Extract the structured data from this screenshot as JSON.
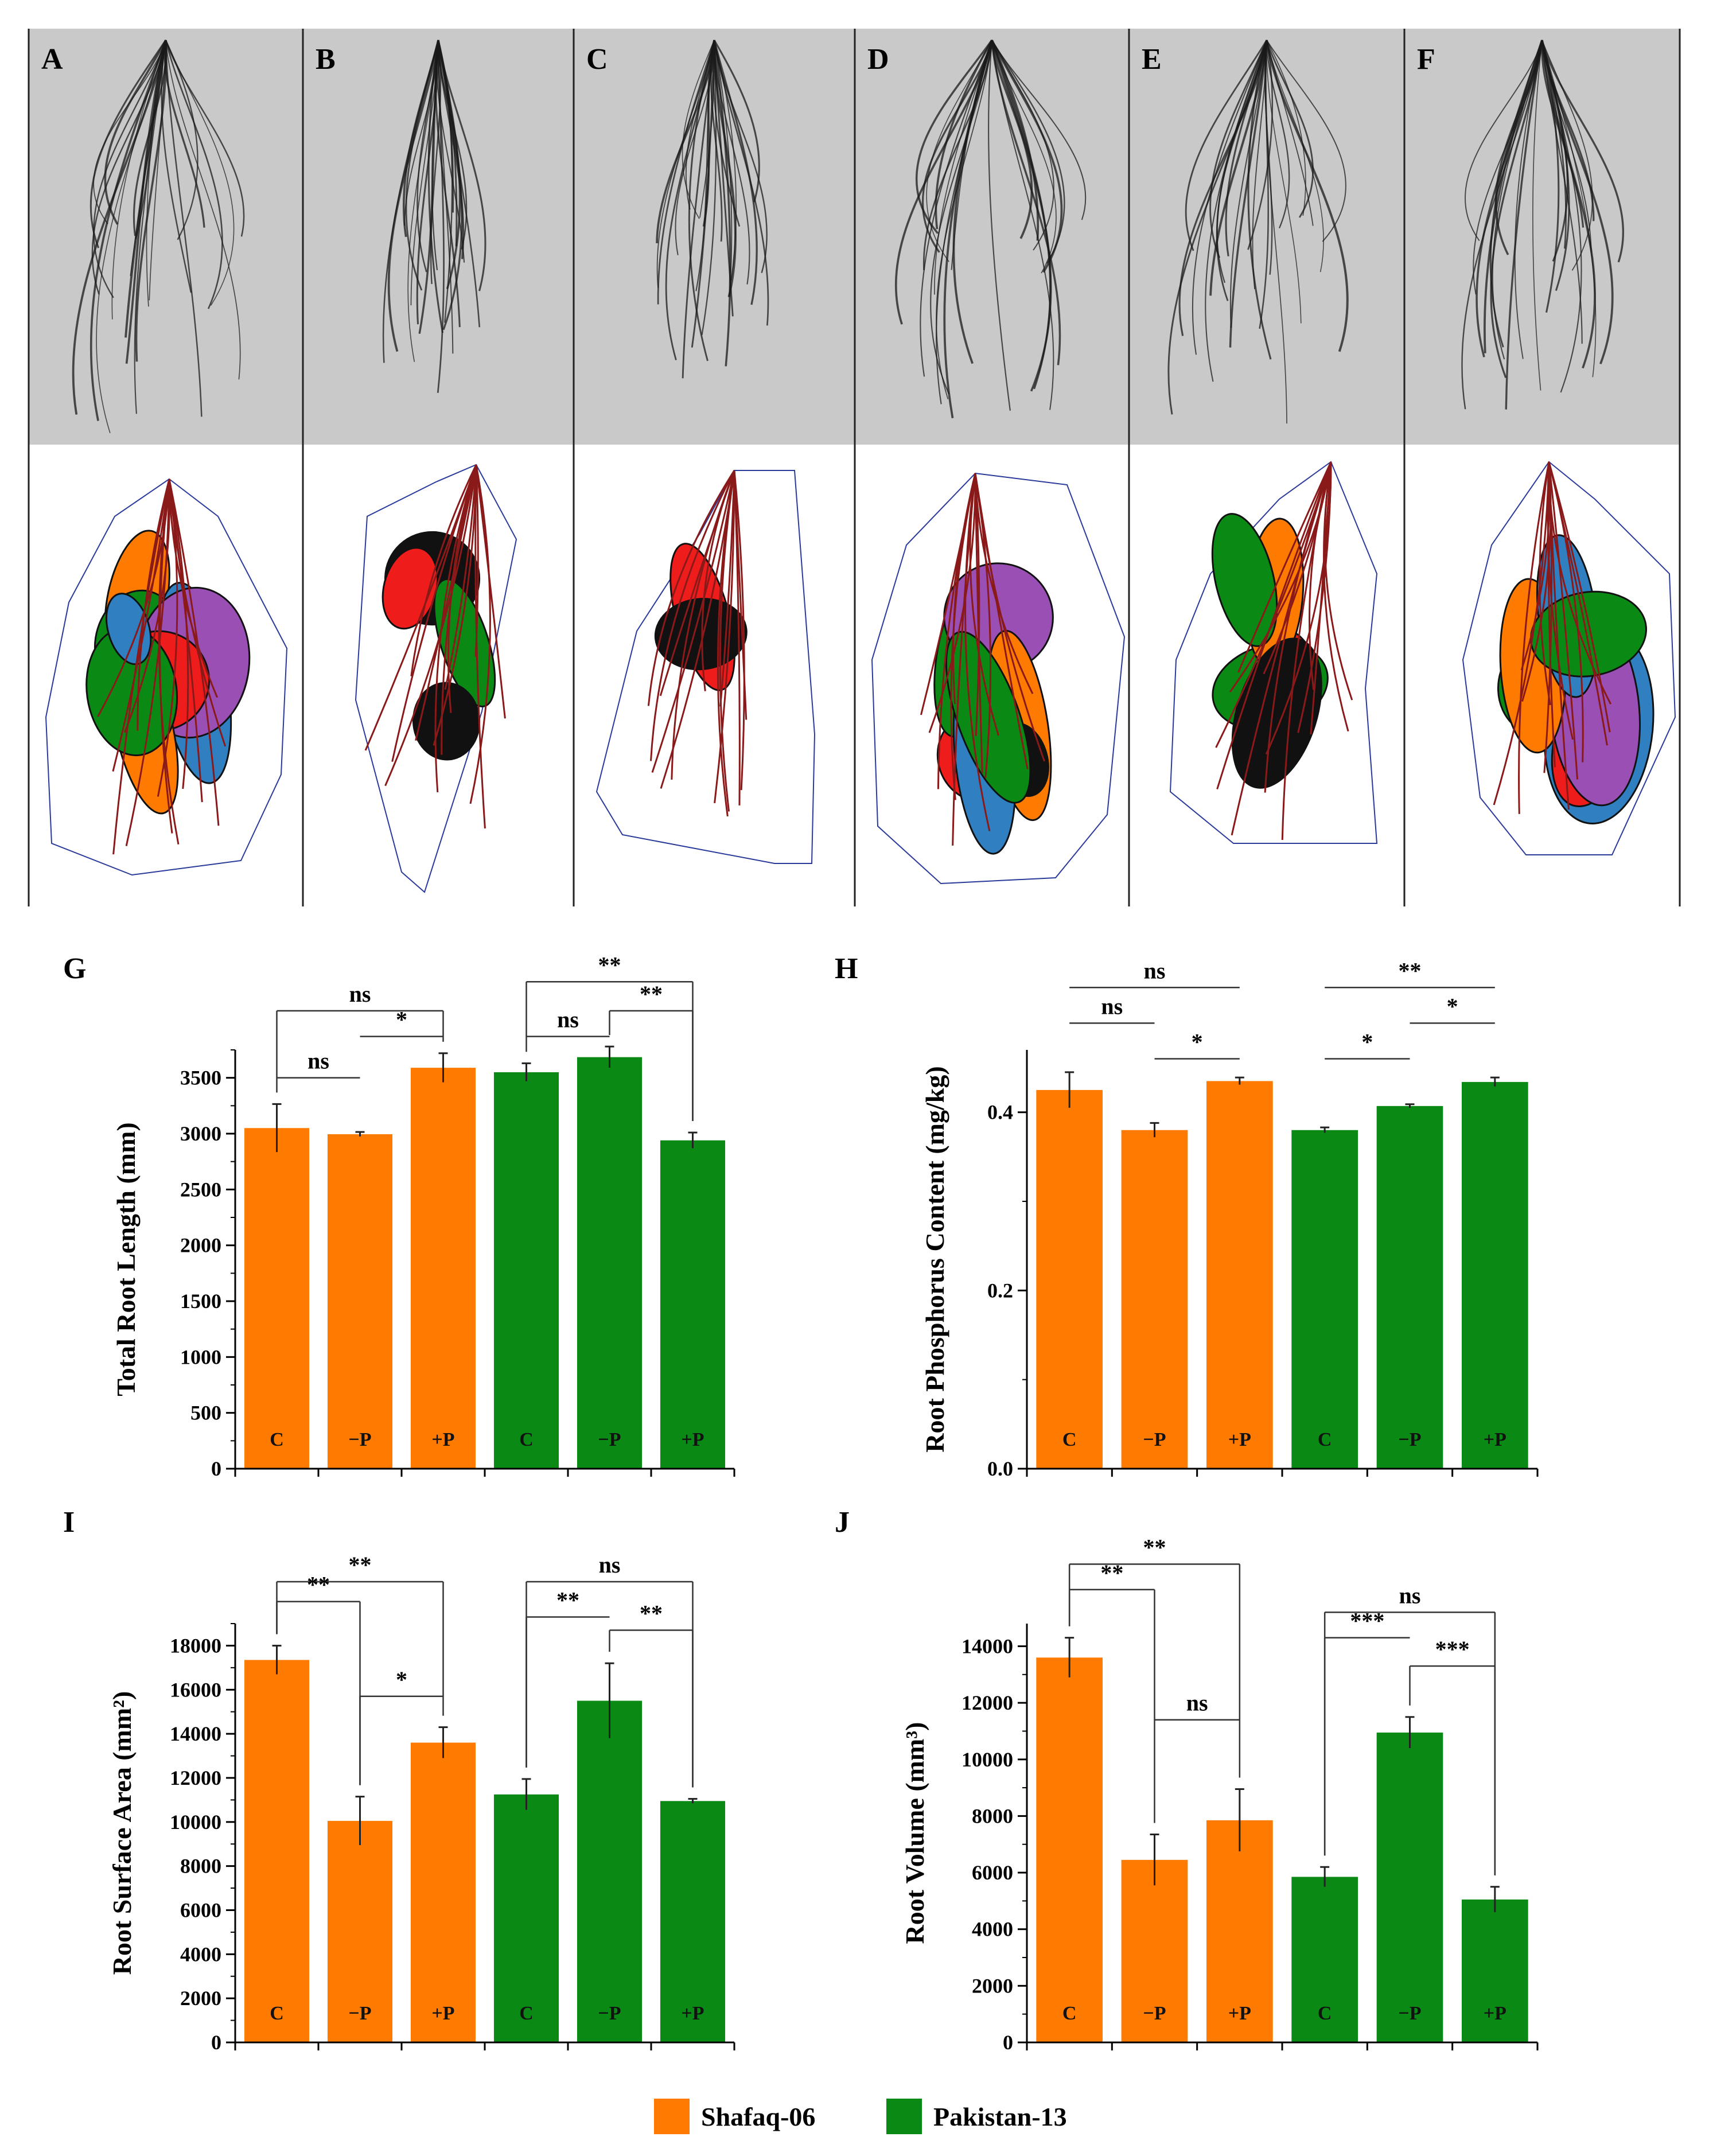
{
  "colors": {
    "shafaq": "#ff7a00",
    "pakistan": "#0a8a14",
    "red": "#ef1c1c",
    "blue": "#2f7fc1",
    "purple": "#9a4fb5",
    "root": "#1a1a1a",
    "hull": "#2a3a9a",
    "scan_bg": "#c9c9c9"
  },
  "image_panels": [
    {
      "letter": "A"
    },
    {
      "letter": "B"
    },
    {
      "letter": "C"
    },
    {
      "letter": "D"
    },
    {
      "letter": "E"
    },
    {
      "letter": "F"
    }
  ],
  "legend": [
    {
      "label": "Shafaq-06",
      "color_key": "shafaq"
    },
    {
      "label": "Pakistan-13",
      "color_key": "pakistan"
    }
  ],
  "chart_data": [
    {
      "letter": "G",
      "type": "bar",
      "ylabel": "Total Root Length (mm)",
      "ylim": [
        0,
        3750
      ],
      "ticks": [
        0,
        500,
        1000,
        1500,
        2000,
        2500,
        3000,
        3500
      ],
      "minor": 250,
      "decimals": 0,
      "categories": [
        "C",
        "−P",
        "+P",
        "C",
        "−P",
        "+P"
      ],
      "groups": [
        "Shafaq-06",
        "Shafaq-06",
        "Shafaq-06",
        "Pakistan-13",
        "Pakistan-13",
        "Pakistan-13"
      ],
      "values": [
        3050,
        2995,
        3590,
        3550,
        3685,
        2940
      ],
      "errors": [
        215,
        20,
        130,
        80,
        95,
        70
      ],
      "brackets": [
        {
          "from": 0,
          "to": 2,
          "y": 4100,
          "label": "ns",
          "style": "down"
        },
        {
          "from": 1,
          "to": 2,
          "y": 3870,
          "label": "*",
          "style": "flat"
        },
        {
          "from": 0,
          "to": 1,
          "y": 3500,
          "label": "ns",
          "style": "flat"
        },
        {
          "from": 3,
          "to": 4,
          "y": 3870,
          "label": "ns",
          "style": "flat"
        },
        {
          "from": 3,
          "to": 5,
          "y": 4360,
          "label": "**",
          "style": "down"
        },
        {
          "from": 4,
          "to": 5,
          "y": 4100,
          "label": "**",
          "style": "down"
        }
      ]
    },
    {
      "letter": "H",
      "type": "bar",
      "ylabel": "Root Phosphorus Content (mg/kg)",
      "ylim": [
        0,
        0.47
      ],
      "ticks": [
        0.0,
        0.2,
        0.4
      ],
      "minor": 0.1,
      "decimals": 1,
      "categories": [
        "C",
        "−P",
        "+P",
        "C",
        "−P",
        "+P"
      ],
      "groups": [
        "Shafaq-06",
        "Shafaq-06",
        "Shafaq-06",
        "Pakistan-13",
        "Pakistan-13",
        "Pakistan-13"
      ],
      "values": [
        0.425,
        0.38,
        0.435,
        0.38,
        0.407,
        0.434
      ],
      "errors": [
        0.02,
        0.008,
        0.004,
        0.003,
        0.002,
        0.005
      ],
      "brackets": [
        {
          "from": 0,
          "to": 2,
          "y": 0.54,
          "label": "ns",
          "style": "flat"
        },
        {
          "from": 0,
          "to": 1,
          "y": 0.5,
          "label": "ns",
          "style": "flat"
        },
        {
          "from": 1,
          "to": 2,
          "y": 0.46,
          "label": "*",
          "style": "flat"
        },
        {
          "from": 3,
          "to": 5,
          "y": 0.54,
          "label": "**",
          "style": "flat"
        },
        {
          "from": 4,
          "to": 5,
          "y": 0.5,
          "label": "*",
          "style": "flat"
        },
        {
          "from": 3,
          "to": 4,
          "y": 0.46,
          "label": "*",
          "style": "flat"
        }
      ]
    },
    {
      "letter": "I",
      "type": "bar",
      "ylabel": "Root Surface Area (mm²)",
      "ylim": [
        0,
        19000
      ],
      "ticks": [
        0,
        2000,
        4000,
        6000,
        8000,
        10000,
        12000,
        14000,
        16000,
        18000
      ],
      "minor": 1000,
      "decimals": 0,
      "categories": [
        "C",
        "−P",
        "+P",
        "C",
        "−P",
        "+P"
      ],
      "groups": [
        "Shafaq-06",
        "Shafaq-06",
        "Shafaq-06",
        "Pakistan-13",
        "Pakistan-13",
        "Pakistan-13"
      ],
      "values": [
        17350,
        10050,
        13600,
        11250,
        15500,
        10950
      ],
      "errors": [
        650,
        1100,
        700,
        700,
        1700,
        100
      ],
      "brackets": [
        {
          "from": 0,
          "to": 2,
          "y": 20900,
          "label": "**",
          "style": "down"
        },
        {
          "from": 0,
          "to": 1,
          "y": 20000,
          "label": "**",
          "style": "down"
        },
        {
          "from": 1,
          "to": 2,
          "y": 15700,
          "label": "*",
          "style": "up"
        },
        {
          "from": 3,
          "to": 5,
          "y": 20900,
          "label": "ns",
          "style": "down"
        },
        {
          "from": 3,
          "to": 4,
          "y": 19300,
          "label": "**",
          "style": "up"
        },
        {
          "from": 4,
          "to": 5,
          "y": 18700,
          "label": "**",
          "style": "down"
        }
      ]
    },
    {
      "letter": "J",
      "type": "bar",
      "ylabel": "Root Volume (mm³)",
      "ylim": [
        0,
        14800
      ],
      "ticks": [
        0,
        2000,
        4000,
        6000,
        8000,
        10000,
        12000,
        14000
      ],
      "minor": 1000,
      "decimals": 0,
      "categories": [
        "C",
        "−P",
        "+P",
        "C",
        "−P",
        "+P"
      ],
      "groups": [
        "Shafaq-06",
        "Shafaq-06",
        "Shafaq-06",
        "Pakistan-13",
        "Pakistan-13",
        "Pakistan-13"
      ],
      "values": [
        13600,
        6450,
        7850,
        5850,
        10950,
        5050
      ],
      "errors": [
        700,
        900,
        1100,
        350,
        550,
        450
      ],
      "brackets": [
        {
          "from": 0,
          "to": 2,
          "y": 16900,
          "label": "**",
          "style": "down"
        },
        {
          "from": 0,
          "to": 1,
          "y": 16000,
          "label": "**",
          "style": "down"
        },
        {
          "from": 1,
          "to": 2,
          "y": 11400,
          "label": "ns",
          "style": "flat"
        },
        {
          "from": 3,
          "to": 5,
          "y": 15200,
          "label": "ns",
          "style": "down"
        },
        {
          "from": 3,
          "to": 4,
          "y": 14300,
          "label": "***",
          "style": "up"
        },
        {
          "from": 4,
          "to": 5,
          "y": 13300,
          "label": "***",
          "style": "down"
        }
      ]
    }
  ]
}
